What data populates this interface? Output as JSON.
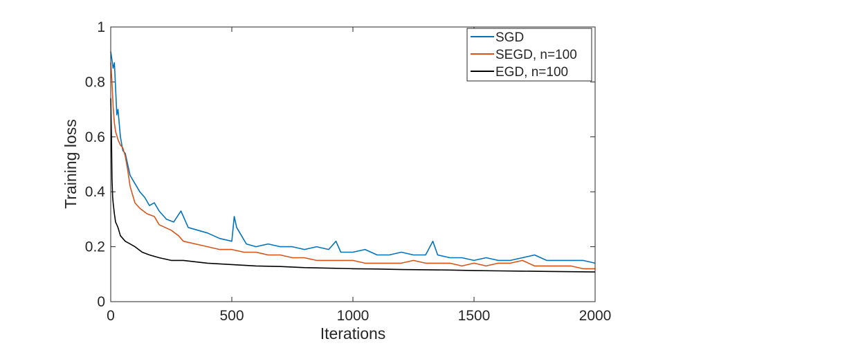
{
  "chart_data": {
    "type": "line",
    "title": "",
    "xlabel": "Iterations",
    "ylabel": "Training loss",
    "xlim": [
      0,
      2000
    ],
    "ylim": [
      0,
      1
    ],
    "xticks": [
      0,
      500,
      1000,
      1500,
      2000
    ],
    "yticks": [
      0,
      0.2,
      0.4,
      0.6,
      0.8,
      1
    ],
    "xtick_labels": [
      "0",
      "500",
      "1000",
      "1500",
      "2000"
    ],
    "ytick_labels": [
      "0",
      "0.2",
      "0.4",
      "0.6",
      "0.8",
      "1"
    ],
    "grid": false,
    "legend_position": "top-right",
    "series": [
      {
        "name": "SGD",
        "color": "#0072BD",
        "x": [
          0,
          5,
          10,
          15,
          20,
          25,
          30,
          40,
          50,
          60,
          80,
          100,
          120,
          140,
          160,
          180,
          200,
          230,
          260,
          290,
          320,
          360,
          400,
          450,
          500,
          510,
          520,
          540,
          560,
          600,
          650,
          700,
          750,
          800,
          850,
          900,
          930,
          950,
          1000,
          1050,
          1100,
          1150,
          1200,
          1250,
          1300,
          1330,
          1350,
          1400,
          1450,
          1500,
          1550,
          1600,
          1650,
          1700,
          1750,
          1800,
          1850,
          1900,
          1950,
          2000
        ],
        "y": [
          0.91,
          0.88,
          0.85,
          0.87,
          0.78,
          0.68,
          0.7,
          0.6,
          0.55,
          0.54,
          0.46,
          0.43,
          0.4,
          0.38,
          0.35,
          0.36,
          0.33,
          0.3,
          0.29,
          0.33,
          0.27,
          0.26,
          0.25,
          0.23,
          0.22,
          0.31,
          0.27,
          0.24,
          0.21,
          0.2,
          0.21,
          0.2,
          0.2,
          0.19,
          0.2,
          0.19,
          0.22,
          0.18,
          0.18,
          0.19,
          0.17,
          0.17,
          0.18,
          0.17,
          0.17,
          0.22,
          0.17,
          0.16,
          0.16,
          0.15,
          0.16,
          0.15,
          0.15,
          0.16,
          0.17,
          0.15,
          0.15,
          0.15,
          0.15,
          0.14
        ]
      },
      {
        "name": "SEGD, n=100",
        "color": "#D95319",
        "x": [
          0,
          5,
          10,
          15,
          20,
          30,
          40,
          50,
          60,
          70,
          80,
          100,
          120,
          150,
          180,
          200,
          250,
          280,
          300,
          350,
          400,
          450,
          500,
          550,
          600,
          650,
          700,
          750,
          800,
          850,
          900,
          950,
          1000,
          1050,
          1100,
          1150,
          1200,
          1250,
          1300,
          1350,
          1400,
          1450,
          1500,
          1550,
          1600,
          1650,
          1700,
          1750,
          1800,
          1850,
          1900,
          1950,
          2000
        ],
        "y": [
          0.87,
          0.8,
          0.71,
          0.65,
          0.62,
          0.59,
          0.57,
          0.56,
          0.53,
          0.48,
          0.42,
          0.36,
          0.34,
          0.32,
          0.31,
          0.28,
          0.26,
          0.24,
          0.22,
          0.21,
          0.2,
          0.19,
          0.19,
          0.18,
          0.18,
          0.17,
          0.17,
          0.16,
          0.16,
          0.15,
          0.15,
          0.15,
          0.15,
          0.14,
          0.14,
          0.14,
          0.14,
          0.15,
          0.14,
          0.14,
          0.14,
          0.13,
          0.14,
          0.13,
          0.14,
          0.14,
          0.15,
          0.13,
          0.13,
          0.13,
          0.13,
          0.12,
          0.12
        ]
      },
      {
        "name": "EGD, n=100",
        "color": "#000000",
        "x": [
          0,
          3,
          5,
          8,
          10,
          15,
          20,
          25,
          30,
          40,
          50,
          60,
          80,
          100,
          130,
          160,
          200,
          250,
          300,
          400,
          500,
          600,
          700,
          800,
          900,
          1000,
          1100,
          1200,
          1300,
          1400,
          1500,
          1600,
          1700,
          1800,
          1900,
          2000
        ],
        "y": [
          0.74,
          0.6,
          0.45,
          0.38,
          0.36,
          0.32,
          0.29,
          0.28,
          0.27,
          0.24,
          0.23,
          0.22,
          0.21,
          0.2,
          0.18,
          0.17,
          0.16,
          0.15,
          0.15,
          0.14,
          0.135,
          0.13,
          0.128,
          0.124,
          0.122,
          0.12,
          0.119,
          0.117,
          0.116,
          0.115,
          0.113,
          0.112,
          0.111,
          0.11,
          0.109,
          0.108
        ]
      }
    ]
  }
}
